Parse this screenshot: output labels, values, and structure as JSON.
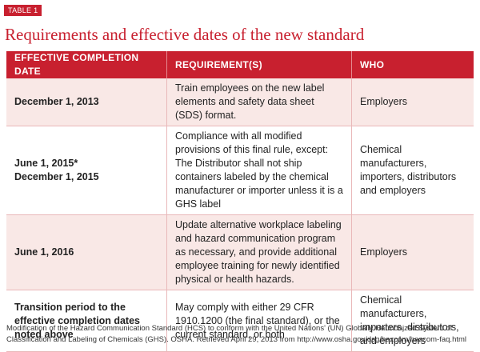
{
  "header": {
    "label": "TABLE 1",
    "title": "Requirements and effective dates of the new standard"
  },
  "table": {
    "columns": [
      "EFFECTIVE COMPLETION DATE",
      "REQUIREMENT(S)",
      "WHO"
    ],
    "rows": [
      {
        "dates": [
          "December 1, 2013"
        ],
        "requirement": "Train employees on the new label elements and safety data sheet (SDS) format.",
        "who": "Employers"
      },
      {
        "dates": [
          "June 1, 2015*",
          "December 1, 2015"
        ],
        "requirement": "Compliance with all modified provisions of this final rule, except: The Distributor shall not ship containers labeled by the chemical manufacturer or importer unless it is a GHS label",
        "who": "Chemical manufacturers, importers, distributors and employers"
      },
      {
        "dates": [
          "June 1, 2016"
        ],
        "requirement": "Update alternative workplace labeling and hazard communication program as necessary, and provide additional employee training for newly identified physical or health hazards.",
        "who": "Employers"
      },
      {
        "dates": [
          "Transition period to the effective completion dates noted above"
        ],
        "requirement": "May comply with either 29 CFR 1910.1200 (the final standard), or the current standard, or both",
        "who": "Chemical manufacturers, importers, distributors, and employers"
      }
    ]
  },
  "footer": {
    "source": "Modification of the Hazard Communication Standard (HCS) to conform with the United Nations' (UN) Globally Harmonized System of Classification and Labeling of Chemicals (GHS). OSHA. Retrieved April 29, 2013 from http://www.osha.gov/dsg/hazcom/hazcom-faq.html"
  }
}
